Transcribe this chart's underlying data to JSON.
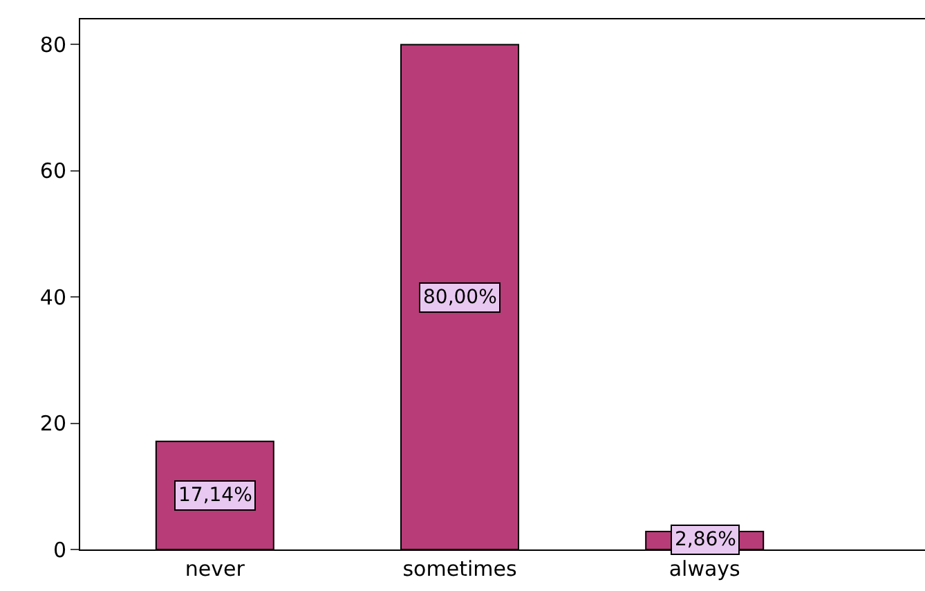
{
  "chart_data": {
    "type": "bar",
    "categories": [
      "never",
      "sometimes",
      "always"
    ],
    "values": [
      17.14,
      80.0,
      2.86
    ],
    "value_labels": [
      "17,14%",
      "80,00%",
      "2,86%"
    ],
    "color": "#b83c78",
    "ylim": [
      0,
      84
    ],
    "yticks": [
      0,
      20,
      40,
      60,
      80
    ]
  }
}
